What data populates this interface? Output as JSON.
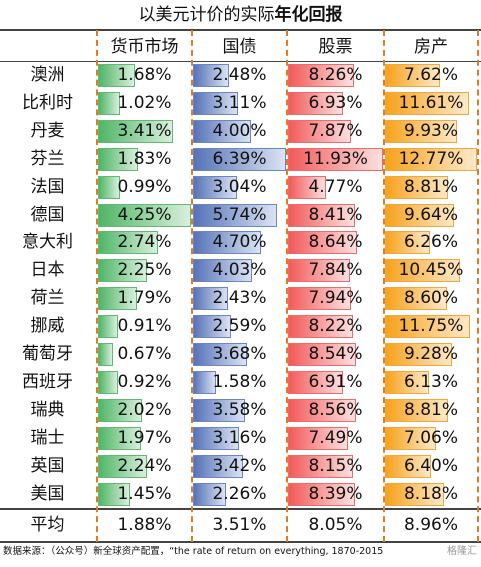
{
  "title": {
    "normal": "以美元计价的实际",
    "bold": "年化回报"
  },
  "headers": [
    "货币市场",
    "国债",
    "股票",
    "房产"
  ],
  "rows": [
    {
      "country": "澳洲",
      "values": [
        "1.68%",
        "2.48%",
        "8.26%",
        "7.62%"
      ]
    },
    {
      "country": "比利时",
      "values": [
        "1.02%",
        "3.11%",
        "6.93%",
        "11.61%"
      ]
    },
    {
      "country": "丹麦",
      "values": [
        "3.41%",
        "4.00%",
        "7.87%",
        "9.93%"
      ]
    },
    {
      "country": "芬兰",
      "values": [
        "1.83%",
        "6.39%",
        "11.93%",
        "12.77%"
      ]
    },
    {
      "country": "法国",
      "values": [
        "0.99%",
        "3.04%",
        "4.77%",
        "8.81%"
      ]
    },
    {
      "country": "德国",
      "values": [
        "4.25%",
        "5.74%",
        "8.41%",
        "9.64%"
      ]
    },
    {
      "country": "意大利",
      "values": [
        "2.74%",
        "4.70%",
        "8.64%",
        "6.26%"
      ]
    },
    {
      "country": "日本",
      "values": [
        "2.25%",
        "4.03%",
        "7.84%",
        "10.45%"
      ]
    },
    {
      "country": "荷兰",
      "values": [
        "1.79%",
        "2.43%",
        "7.94%",
        "8.60%"
      ]
    },
    {
      "country": "挪威",
      "values": [
        "0.91%",
        "2.59%",
        "8.22%",
        "11.75%"
      ]
    },
    {
      "country": "葡萄牙",
      "values": [
        "0.67%",
        "3.68%",
        "8.54%",
        "9.28%"
      ]
    },
    {
      "country": "西班牙",
      "values": [
        "0.92%",
        "1.58%",
        "6.91%",
        "6.13%"
      ]
    },
    {
      "country": "瑞典",
      "values": [
        "2.02%",
        "3.58%",
        "8.56%",
        "8.81%"
      ]
    },
    {
      "country": "瑞士",
      "values": [
        "1.97%",
        "3.16%",
        "7.49%",
        "7.06%"
      ]
    },
    {
      "country": "英国",
      "values": [
        "2.24%",
        "3.42%",
        "8.15%",
        "6.40%"
      ]
    },
    {
      "country": "美国",
      "values": [
        "1.45%",
        "2.26%",
        "8.39%",
        "8.18%"
      ]
    }
  ],
  "average": {
    "label": "平均",
    "values": [
      "1.88%",
      "3.51%",
      "8.05%",
      "8.96%"
    ]
  },
  "source": "数据来源：（公众号）新全球资产配置，“the rate of return on everything, 1870-2015",
  "watermark": "格隆汇",
  "colors": {
    "money_market": "#4fb665",
    "bonds": "#5673b8",
    "equities": "#f25a5a",
    "housing": "#f7a21c",
    "divider": "#e07b25"
  }
}
